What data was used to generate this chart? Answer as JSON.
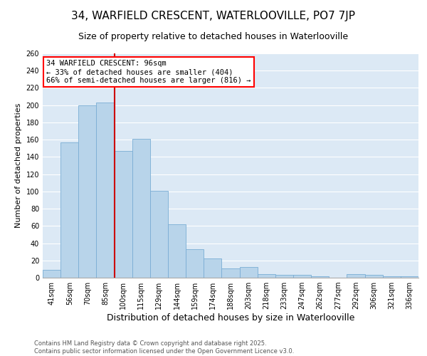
{
  "title": "34, WARFIELD CRESCENT, WATERLOOVILLE, PO7 7JP",
  "subtitle": "Size of property relative to detached houses in Waterlooville",
  "xlabel": "Distribution of detached houses by size in Waterlooville",
  "ylabel": "Number of detached properties",
  "categories": [
    "41sqm",
    "56sqm",
    "70sqm",
    "85sqm",
    "100sqm",
    "115sqm",
    "129sqm",
    "144sqm",
    "159sqm",
    "174sqm",
    "188sqm",
    "203sqm",
    "218sqm",
    "233sqm",
    "247sqm",
    "262sqm",
    "277sqm",
    "292sqm",
    "306sqm",
    "321sqm",
    "336sqm"
  ],
  "values": [
    9,
    157,
    200,
    203,
    147,
    161,
    101,
    62,
    33,
    22,
    11,
    12,
    4,
    3,
    3,
    2,
    0,
    4,
    3,
    2,
    2
  ],
  "bar_color": "#b8d4ea",
  "bar_edge_color": "#7aadd4",
  "vline_color": "#cc0000",
  "annotation_title": "34 WARFIELD CRESCENT: 96sqm",
  "annotation_line1": "← 33% of detached houses are smaller (404)",
  "annotation_line2": "66% of semi-detached houses are larger (816) →",
  "annotation_box_color": "red",
  "footer_line1": "Contains HM Land Registry data © Crown copyright and database right 2025.",
  "footer_line2": "Contains public sector information licensed under the Open Government Licence v3.0.",
  "ylim": [
    0,
    260
  ],
  "yticks": [
    0,
    20,
    40,
    60,
    80,
    100,
    120,
    140,
    160,
    180,
    200,
    220,
    240,
    260
  ],
  "background_color": "#dce9f5",
  "title_fontsize": 11,
  "subtitle_fontsize": 9,
  "ylabel_fontsize": 8,
  "xlabel_fontsize": 9,
  "tick_fontsize": 7,
  "footer_fontsize": 6,
  "annotation_fontsize": 7.5
}
